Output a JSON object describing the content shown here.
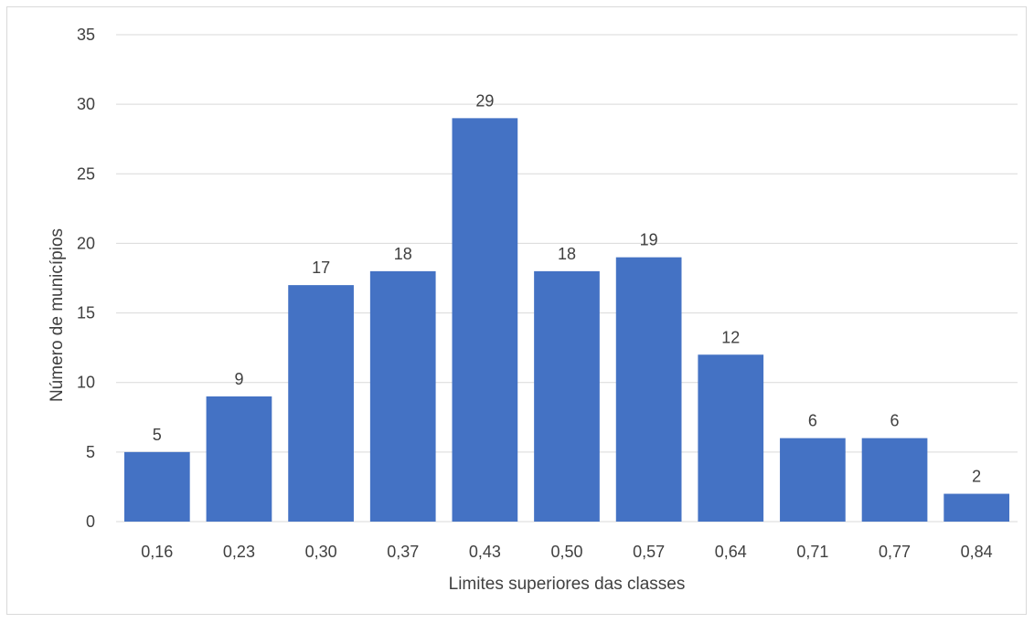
{
  "chart_data": {
    "type": "bar",
    "title": "",
    "xlabel": "Limites superiores das classes",
    "ylabel": "Número de municípios",
    "categories": [
      "0,16",
      "0,23",
      "0,30",
      "0,37",
      "0,43",
      "0,50",
      "0,57",
      "0,64",
      "0,71",
      "0,77",
      "0,84"
    ],
    "values": [
      5,
      9,
      17,
      18,
      29,
      18,
      19,
      12,
      6,
      6,
      2
    ],
    "ylim": [
      0,
      35
    ],
    "yticks": [
      "0",
      "5",
      "10",
      "15",
      "20",
      "25",
      "30",
      "35"
    ],
    "grid": true,
    "legend": "none",
    "colors": {
      "bar": "#4472c4",
      "grid": "#d9d9d9",
      "text": "#404040"
    }
  }
}
